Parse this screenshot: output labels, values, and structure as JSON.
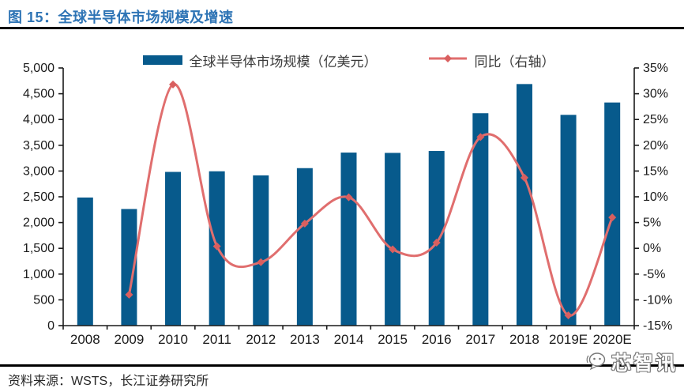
{
  "figure": {
    "title": "图 15：全球半导体市场规模及增速",
    "source": "资料来源：WSTS，长江证券研究所",
    "watermark": "芯智讯"
  },
  "legend": [
    {
      "label": "全球半导体市场规模（亿美元）",
      "type": "bar"
    },
    {
      "label": "同比（右轴）",
      "type": "line"
    }
  ],
  "colors": {
    "bar": "#075A8C",
    "line": "#E06E6E",
    "marker": "#D95F5F",
    "title": "#2E74B5",
    "axis_text": "#1A1A1A",
    "axis_line": "#1A1A1A"
  },
  "chart_data": {
    "type": "bar",
    "subtype": "bar+line combo, dual axis",
    "title": "全球半导体市场规模及增速",
    "categories": [
      "2008",
      "2009",
      "2010",
      "2011",
      "2012",
      "2013",
      "2014",
      "2015",
      "2016",
      "2017",
      "2018",
      "2019E",
      "2020E"
    ],
    "series": [
      {
        "name": "全球半导体市场规模（亿美元）",
        "type": "bar",
        "axis": "left",
        "values": [
          2486,
          2263,
          2983,
          2995,
          2916,
          3056,
          3358,
          3352,
          3389,
          4122,
          4688,
          4090,
          4330
        ]
      },
      {
        "name": "同比（右轴）",
        "type": "line",
        "axis": "right",
        "unit": "%",
        "values": [
          null,
          -9.0,
          31.8,
          0.4,
          -2.7,
          4.8,
          9.9,
          -0.2,
          1.1,
          21.6,
          13.7,
          -13.0,
          6.0
        ]
      }
    ],
    "left_axis": {
      "min": 0,
      "max": 5000,
      "step": 500,
      "tick_labels": [
        "5,000",
        "4,500",
        "4,000",
        "3,500",
        "3,000",
        "2,500",
        "2,000",
        "1,500",
        "1,000",
        "500",
        "0"
      ]
    },
    "right_axis": {
      "min": -15,
      "max": 35,
      "step": 5,
      "tick_labels": [
        "35%",
        "30%",
        "25%",
        "20%",
        "15%",
        "10%",
        "5%",
        "0%",
        "-5%",
        "-10%",
        "-15%"
      ]
    },
    "grid": false,
    "legend_position": "top"
  }
}
